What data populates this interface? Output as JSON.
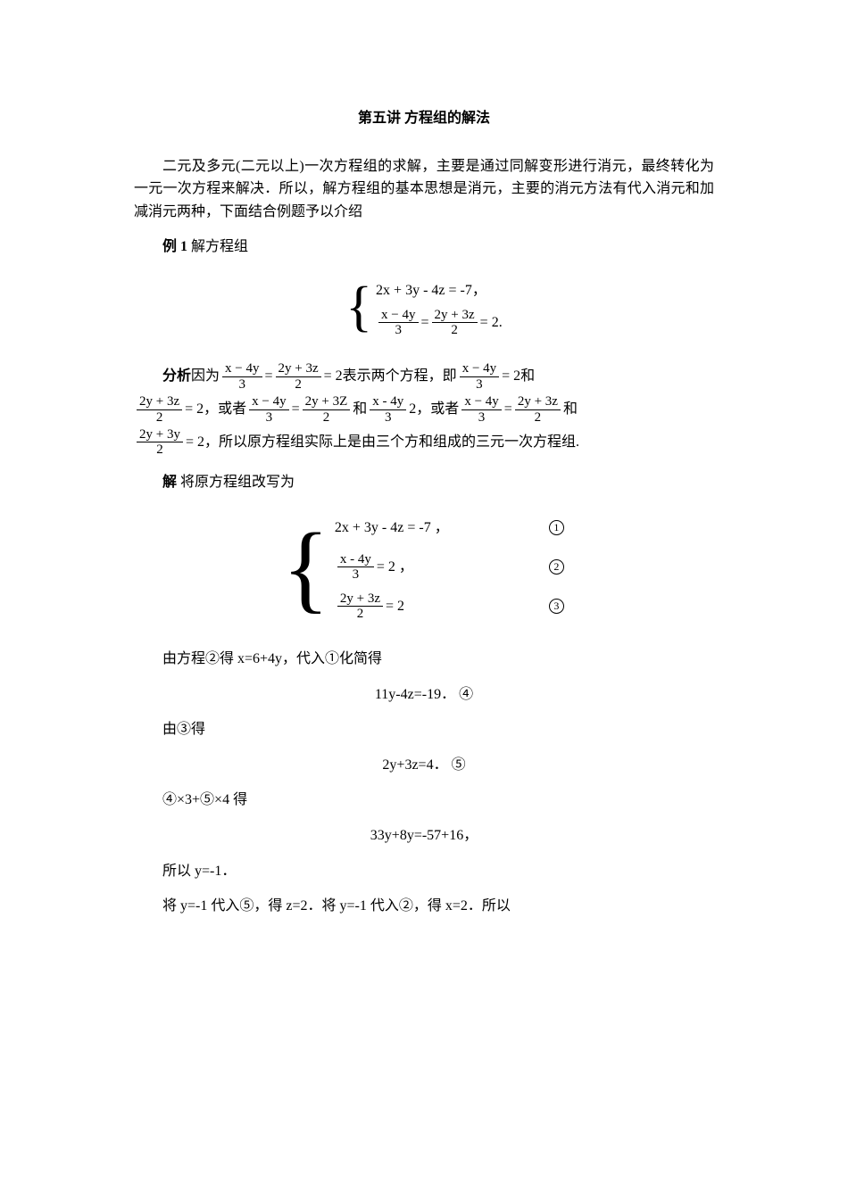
{
  "title": "第五讲  方程组的解法",
  "intro": "二元及多元(二元以上)一次方程组的求解，主要是通过同解变形进行消元，最终转化为一元一次方程来解决．所以，解方程组的基本思想是消元，主要的消元方法有代入消元和加减消元两种，下面结合例题予以介绍",
  "ex1_label_bold": "例 1",
  "ex1_label_rest": " 解方程组",
  "sys1": {
    "line1": "2x + 3y - 4z = -7，",
    "line2_frac1_num": "x − 4y",
    "line2_frac1_den": "3",
    "line2_eq1": " = ",
    "line2_frac2_num": "2y + 3z",
    "line2_frac2_den": "2",
    "line2_eq2": " = 2."
  },
  "analysis": {
    "label": "分析",
    "t1": " 因为 ",
    "f1n": "x − 4y",
    "f1d": "3",
    "t2": " = ",
    "f2n": "2y + 3z",
    "f2d": "2",
    "t3": " = 2表示两个方程，即 ",
    "f3n": "x − 4y",
    "f3d": "3",
    "t4": " = 2和",
    "f4n": "2y + 3z",
    "f4d": "2",
    "t5": " = 2，或者 ",
    "f5n": "x − 4y",
    "f5d": "3",
    "t6": " = ",
    "f6n": "2y + 3Z",
    "f6d": "2",
    "t7": " 和 ",
    "f7n": "x - 4y",
    "f7d": "3",
    "t8": " 2，或者 ",
    "f8n": "x − 4y",
    "f8d": "3",
    "t9": " = ",
    "f9n": "2y + 3z",
    "f9d": "2",
    "t10": " 和",
    "f10n": "2y + 3y",
    "f10d": "2",
    "t11": " = 2，所以原方程组实际上是由三个方和组成的三元一次方程组."
  },
  "solve_label_bold": "解",
  "solve_label_rest": " 将原方程组改写为",
  "sys2": {
    "r1": "2x + 3y - 4z = -7 ，",
    "r2_fn": "x - 4y",
    "r2_fd": "3",
    "r2_rest": " = 2 ，",
    "r3_fn": "2y + 3z",
    "r3_fd": "2",
    "r3_rest": " = 2"
  },
  "markers": {
    "m1": "1",
    "m2": "2",
    "m3": "3",
    "m4": "4",
    "m5": "5"
  },
  "step1": "由方程②得 x=6+4y，代入①化简得",
  "eq4": "11y-4z=-19．  ④",
  "step2": "由③得",
  "eq5": "2y+3z=4．  ⑤",
  "step3": "④×3+⑤×4 得",
  "eq6": "33y+8y=-57+16，",
  "step4": "所以  y=-1．",
  "step5": "将 y=-1 代入⑤，得 z=2．将 y=-1 代入②，得 x=2．所以",
  "colors": {
    "text": "#000000",
    "bg": "#ffffff"
  },
  "fonts": {
    "body": "SimSun",
    "math": "Times New Roman",
    "size_pt": 12
  }
}
